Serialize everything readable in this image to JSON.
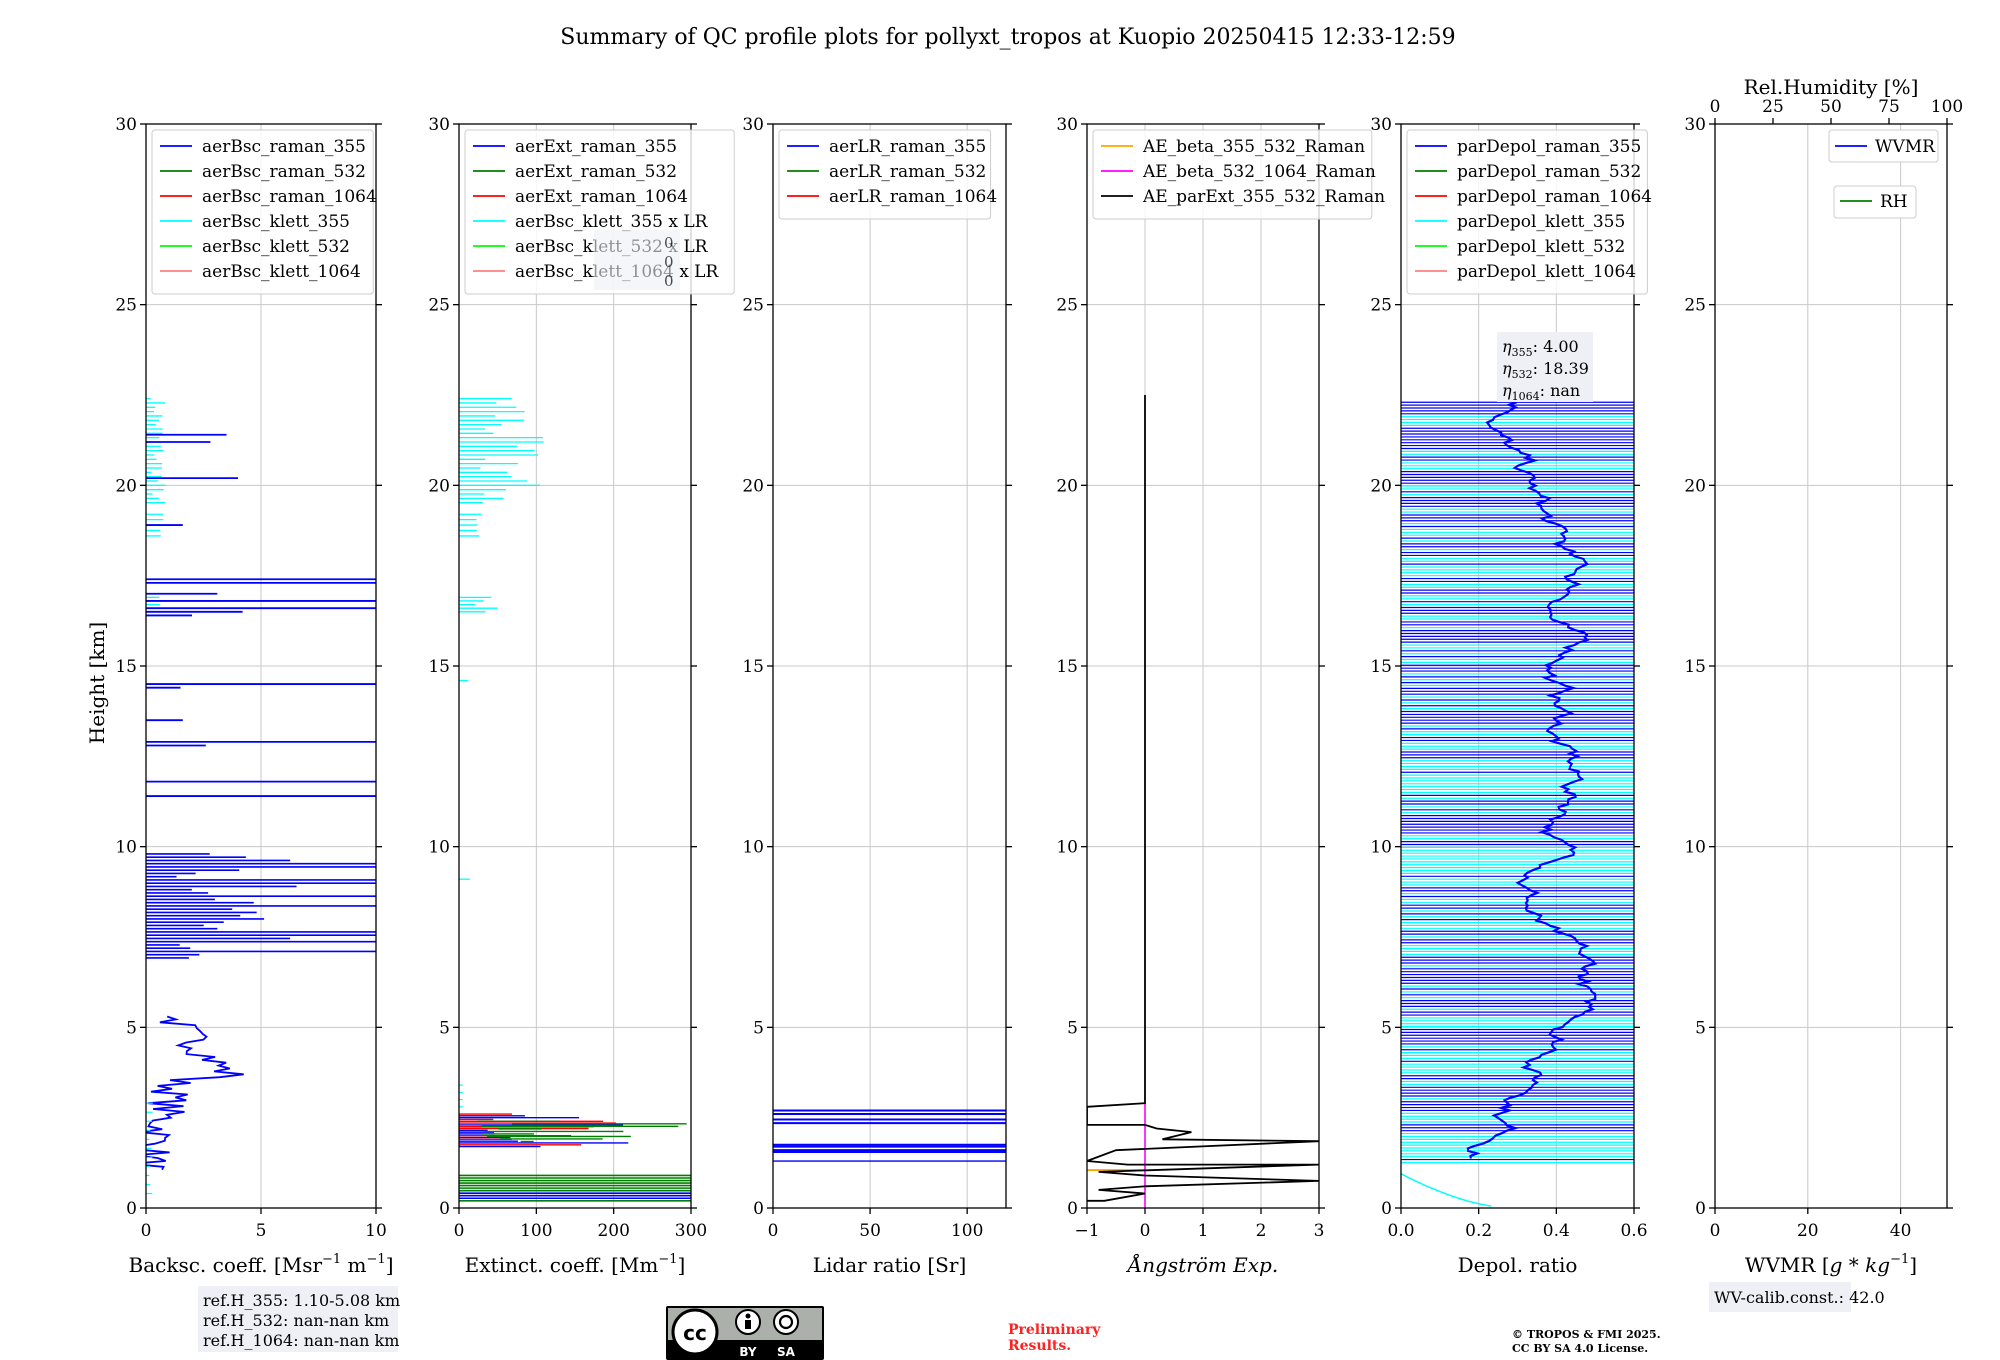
{
  "figure": {
    "title": "Summary of QC profile plots for pollyxt_tropos at Kuopio 20250415 12:33-12:59",
    "ylabel": "Height [km]",
    "ref_heights": [
      "ref.H_355: 1.10-5.08 km",
      "ref.H_532: nan-nan km",
      "ref.H_1064: nan-nan km"
    ],
    "license_badge": {
      "cc": "cc",
      "by": "BY",
      "sa": "SA"
    },
    "preliminary": [
      "Preliminary",
      "Results."
    ],
    "copyright": [
      "© TROPOS & FMI 2025.",
      "CC BY SA 4.0 License."
    ],
    "wv_calib": "WV-calib.const.: 42.0",
    "eta_box": [
      {
        "sym": "η",
        "sub": "355",
        "val": ": 4.00"
      },
      {
        "sym": "η",
        "sub": "532",
        "val": ": 18.39"
      },
      {
        "sym": "η",
        "sub": "1064",
        "val": ": nan"
      }
    ],
    "ext_box_partial": [
      "0",
      "0",
      "0"
    ]
  },
  "colors": {
    "blue": "#0000ff",
    "green": "#008000",
    "red": "#ff0000",
    "cyan": "#00ffff",
    "lime": "#00ff00",
    "salmon": "#ff8080",
    "orange": "#ffa500",
    "magenta": "#ff00ff",
    "black": "#000000",
    "grid": "#c8c8c8",
    "legend_edge": "#cccccc",
    "box_bg": "#eef0f5"
  },
  "chart_data": [
    {
      "id": "backscatter",
      "type": "line",
      "xlabel": "Backsc. coeff. [Msr$^{-1}$ m$^{-1}$]",
      "xlabel_parts": [
        [
          "Backsc. coeff. [Msr",
          ""
        ],
        [
          "−1",
          "sup"
        ],
        [
          " m",
          ""
        ],
        [
          "−1",
          "sup"
        ],
        [
          "]",
          ""
        ]
      ],
      "xlim": [
        0,
        10
      ],
      "ylim": [
        0,
        30
      ],
      "xticks": [
        0,
        5,
        10
      ],
      "yticks": [
        0,
        5,
        10,
        15,
        20,
        25,
        30
      ],
      "grid": true,
      "legend_position": "upper-left",
      "series": [
        {
          "name": "aerBsc_raman_355",
          "color": "#0000ff"
        },
        {
          "name": "aerBsc_raman_532",
          "color": "#008000"
        },
        {
          "name": "aerBsc_raman_1064",
          "color": "#ff0000"
        },
        {
          "name": "aerBsc_klett_355",
          "color": "#00ffff"
        },
        {
          "name": "aerBsc_klett_532",
          "color": "#00ff00"
        },
        {
          "name": "aerBsc_klett_1064",
          "color": "#ff8080"
        }
      ]
    },
    {
      "id": "extinction",
      "type": "line",
      "xlabel": "Extinct. coeff. [Mm$^{-1}$]",
      "xlabel_parts": [
        [
          "Extinct. coeff. [Mm",
          ""
        ],
        [
          "−1",
          "sup"
        ],
        [
          "]",
          ""
        ]
      ],
      "xlim": [
        0,
        300
      ],
      "ylim": [
        0,
        30
      ],
      "xticks": [
        0,
        100,
        200,
        300
      ],
      "yticks": [
        0,
        5,
        10,
        15,
        20,
        25,
        30
      ],
      "grid": true,
      "legend_position": "upper-left",
      "series": [
        {
          "name": "aerExt_raman_355",
          "color": "#0000ff"
        },
        {
          "name": "aerExt_raman_532",
          "color": "#008000"
        },
        {
          "name": "aerExt_raman_1064",
          "color": "#ff0000"
        },
        {
          "name": "aerBsc_klett_355 x LR",
          "color": "#00ffff"
        },
        {
          "name": "aerBsc_klett_532 x LR",
          "color": "#00ff00"
        },
        {
          "name": "aerBsc_klett_1064 x LR",
          "color": "#ff8080"
        }
      ]
    },
    {
      "id": "lidar_ratio",
      "type": "line",
      "xlabel": "Lidar ratio [Sr]",
      "xlabel_parts": [
        [
          "Lidar ratio [Sr]",
          ""
        ]
      ],
      "xlim": [
        0,
        120
      ],
      "ylim": [
        0,
        30
      ],
      "xticks": [
        0,
        50,
        100
      ],
      "yticks": [
        0,
        5,
        10,
        15,
        20,
        25,
        30
      ],
      "grid": true,
      "legend_position": "upper-left",
      "series": [
        {
          "name": "aerLR_raman_355",
          "color": "#0000ff"
        },
        {
          "name": "aerLR_raman_532",
          "color": "#008000"
        },
        {
          "name": "aerLR_raman_1064",
          "color": "#ff0000"
        }
      ]
    },
    {
      "id": "angstrom",
      "type": "line",
      "xlabel": "Ångström Exp.",
      "xlabel_parts": [
        [
          "Ångström Exp.",
          "ital"
        ]
      ],
      "xlim": [
        -1,
        3
      ],
      "ylim": [
        0,
        30
      ],
      "xticks": [
        -1,
        0,
        1,
        2,
        3
      ],
      "yticks": [
        0,
        5,
        10,
        15,
        20,
        25,
        30
      ],
      "grid": true,
      "legend_position": "upper-left",
      "series": [
        {
          "name": "AE_beta_355_532_Raman",
          "color": "#ffa500"
        },
        {
          "name": "AE_beta_532_1064_Raman",
          "color": "#ff00ff"
        },
        {
          "name": "AE_parExt_355_532_Raman",
          "color": "#000000",
          "points": [
            [
              0,
              22.5
            ],
            [
              0,
              2.9
            ],
            [
              -1,
              2.8
            ],
            [
              -1,
              2.3
            ],
            [
              0,
              2.3
            ],
            [
              0.2,
              2.2
            ],
            [
              0.8,
              2.1
            ],
            [
              0.3,
              1.9
            ],
            [
              3,
              1.85
            ],
            [
              -0.5,
              1.6
            ],
            [
              -1,
              1.3
            ],
            [
              -0.3,
              1.2
            ],
            [
              3,
              1.2
            ],
            [
              -0.8,
              1.0
            ],
            [
              0,
              0.9
            ],
            [
              3,
              0.75
            ],
            [
              0,
              0.6
            ],
            [
              -0.8,
              0.5
            ],
            [
              0,
              0.4
            ],
            [
              -0.7,
              0.2
            ],
            [
              -1,
              0.2
            ]
          ]
        }
      ]
    },
    {
      "id": "depol",
      "type": "line",
      "xlabel": "Depol. ratio",
      "xlabel_parts": [
        [
          "Depol. ratio",
          ""
        ]
      ],
      "xlim": [
        0,
        0.6
      ],
      "ylim": [
        0,
        30
      ],
      "xticks": [
        0.0,
        0.2,
        0.4,
        0.6
      ],
      "yticks": [
        0,
        5,
        10,
        15,
        20,
        25,
        30
      ],
      "grid": true,
      "legend_position": "upper-left",
      "series": [
        {
          "name": "parDepol_raman_355",
          "color": "#0000ff"
        },
        {
          "name": "parDepol_raman_532",
          "color": "#008000"
        },
        {
          "name": "parDepol_raman_1064",
          "color": "#ff0000"
        },
        {
          "name": "parDepol_klett_355",
          "color": "#00ffff"
        },
        {
          "name": "parDepol_klett_532",
          "color": "#00ff00"
        },
        {
          "name": "parDepol_klett_1064",
          "color": "#ff8080"
        }
      ]
    },
    {
      "id": "wvmr",
      "type": "line",
      "xlabel": "WVMR [$g * kg^{-1}$]",
      "xlabel_parts": [
        [
          "WVMR [",
          ""
        ],
        [
          "g",
          "ital"
        ],
        [
          " * ",
          ""
        ],
        [
          "kg",
          "ital"
        ],
        [
          "−1",
          "sup"
        ],
        [
          "]",
          ""
        ]
      ],
      "xlim": [
        0,
        50
      ],
      "ylim": [
        0,
        30
      ],
      "xticks": [
        0,
        20,
        40
      ],
      "yticks": [
        0,
        5,
        10,
        15,
        20,
        25,
        30
      ],
      "top_axis": {
        "label": "Rel.Humidity [%]",
        "xlim": [
          0,
          100
        ],
        "xticks": [
          0,
          25,
          50,
          75,
          100
        ]
      },
      "grid": true,
      "series": [
        {
          "name": "WVMR",
          "color": "#0000ff"
        },
        {
          "name": "RH",
          "color": "#008000"
        }
      ]
    }
  ]
}
